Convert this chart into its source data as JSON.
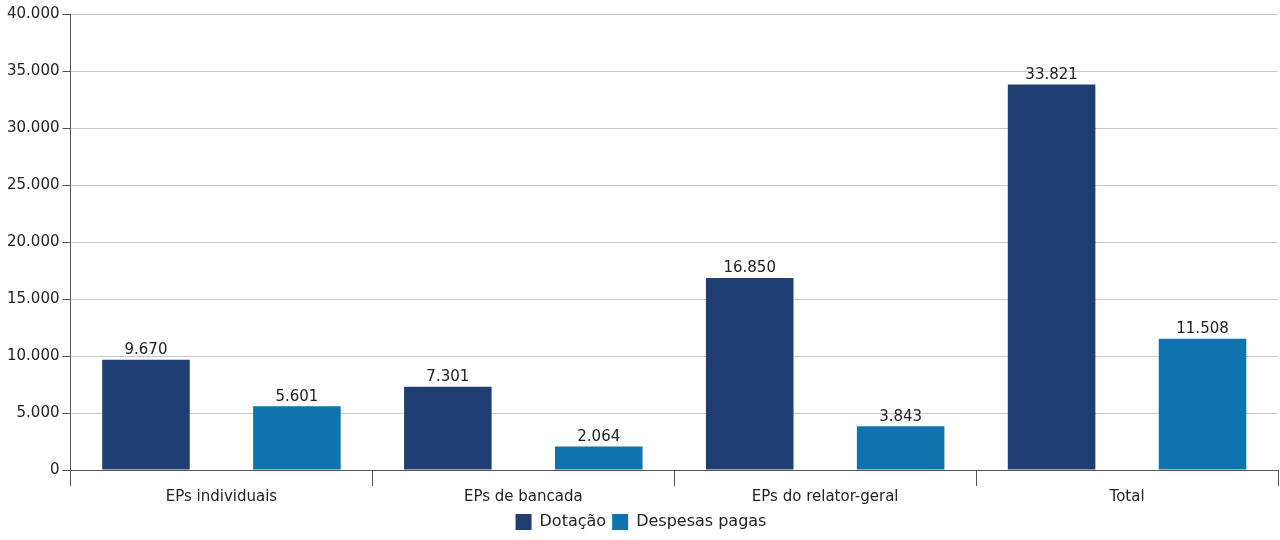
{
  "chart_data": {
    "type": "bar",
    "categories": [
      "EPs individuais",
      "EPs de bancada",
      "EPs do relator-geral",
      "Total"
    ],
    "series": [
      {
        "name": "Dotação",
        "color": "#1e3e74",
        "values": [
          9670,
          7301,
          16850,
          33821
        ],
        "value_labels": [
          "9.670",
          "7.301",
          "16.850",
          "33.821"
        ]
      },
      {
        "name": "Despesas pagas",
        "color": "#0f73ae",
        "values": [
          5601,
          2064,
          3843,
          11508
        ],
        "value_labels": [
          "5.601",
          "2.064",
          "3.843",
          "11.508"
        ]
      }
    ],
    "ylim": [
      0,
      40000
    ],
    "yticks": [
      {
        "value": 0,
        "label": "0"
      },
      {
        "value": 5000,
        "label": "5.000"
      },
      {
        "value": 10000,
        "label": "10.000"
      },
      {
        "value": 15000,
        "label": "15.000"
      },
      {
        "value": 20000,
        "label": "20.000"
      },
      {
        "value": 25000,
        "label": "25.000"
      },
      {
        "value": 30000,
        "label": "30.000"
      },
      {
        "value": 35000,
        "label": "35.000"
      },
      {
        "value": 40000,
        "label": "40.000"
      }
    ],
    "grid": "y",
    "legend": "bottom"
  }
}
